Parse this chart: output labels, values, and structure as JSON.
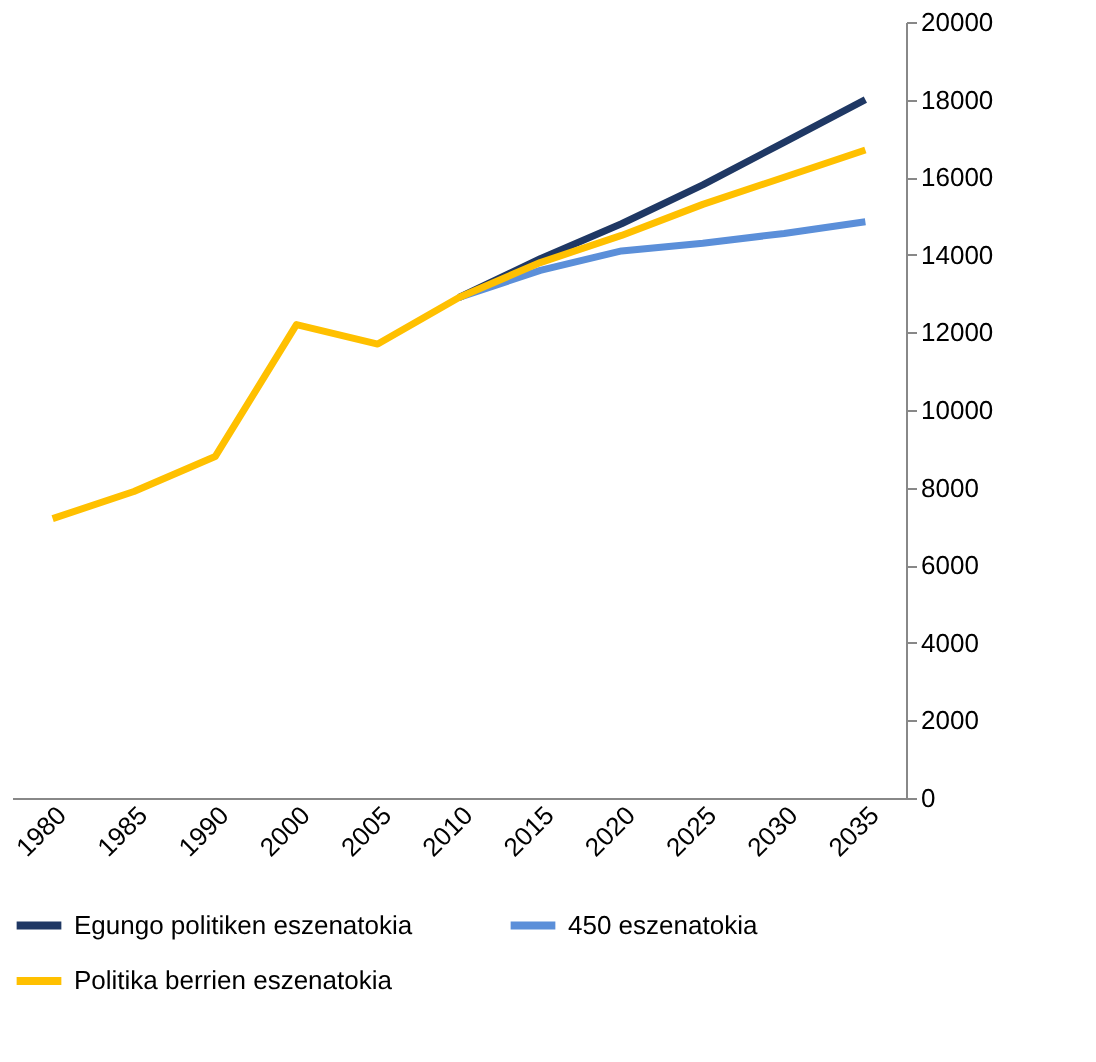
{
  "chart_data": {
    "type": "line",
    "categories": [
      "1980",
      "1985",
      "1990",
      "2000",
      "2005",
      "2010",
      "2015",
      "2020",
      "2025",
      "2030",
      "2035"
    ],
    "series": [
      {
        "name": "Egungo politiken eszenatokia",
        "color": "#1f3864",
        "values": [
          null,
          null,
          null,
          null,
          null,
          12900,
          13900,
          14800,
          15800,
          16900,
          18000
        ]
      },
      {
        "name": "450 eszenatokia",
        "color": "#5b8fd9",
        "values": [
          null,
          null,
          null,
          null,
          null,
          12900,
          13600,
          14100,
          14300,
          14550,
          14850
        ]
      },
      {
        "name": "Politika berrien eszenatokia",
        "color": "#ffc000",
        "values": [
          7200,
          7900,
          8800,
          12200,
          11700,
          12900,
          13800,
          14500,
          15300,
          16000,
          16700
        ]
      }
    ],
    "ylim": [
      0,
      20000
    ],
    "yticks": [
      0,
      2000,
      4000,
      6000,
      8000,
      10000,
      12000,
      14000,
      16000,
      18000,
      20000
    ],
    "grid": false,
    "legend": "bottom",
    "marker": "none",
    "line_style": "solid"
  }
}
